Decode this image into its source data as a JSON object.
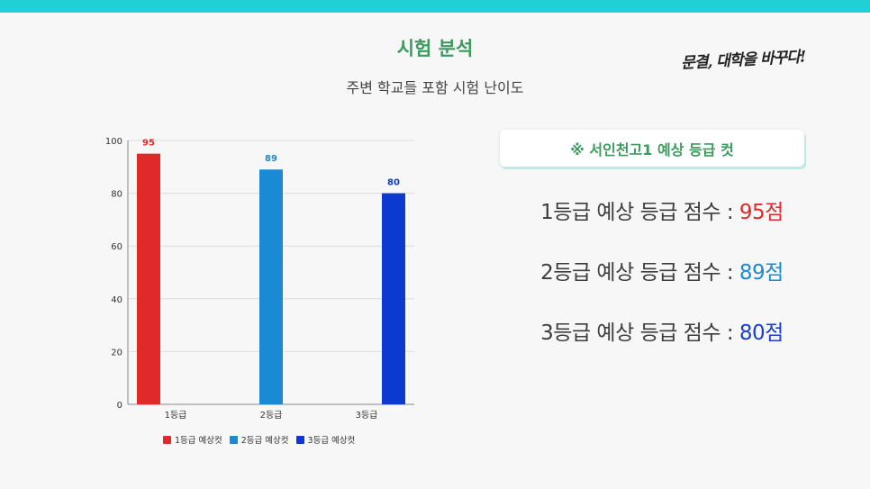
{
  "header": {
    "title": "시험 분석",
    "subtitle": "주변 학교들 포함 시험 난이도",
    "brand_logo_text": "문결, 대학을 바꾸다!"
  },
  "panel": {
    "cutoff_title": "※ 서인천고1 예상 등급 컷",
    "lines": [
      {
        "label": "1등급 예상 등급 점수 : ",
        "value": "95점",
        "color": "#e02a2a"
      },
      {
        "label": "2등급 예상 등급 점수 : ",
        "value": "89점",
        "color": "#1a8ad4"
      },
      {
        "label": "3등급 예상 등급 점수 : ",
        "value": "80점",
        "color": "#1a3fd0"
      }
    ]
  },
  "chart_data": {
    "type": "bar",
    "categories": [
      "1등급",
      "2등급",
      "3등급"
    ],
    "series": [
      {
        "name": "1등급 예상컷",
        "values": [
          95,
          null,
          null
        ],
        "color": "#e02a2a"
      },
      {
        "name": "2등급 예상컷",
        "values": [
          null,
          89,
          null
        ],
        "color": "#1a8ad4"
      },
      {
        "name": "3등급 예상컷",
        "values": [
          null,
          null,
          80
        ],
        "color": "#0c3ad0"
      }
    ],
    "yticks": [
      0,
      20,
      40,
      60,
      80,
      100
    ],
    "ylim": [
      0,
      100
    ],
    "grid": true,
    "legend_position": "bottom"
  }
}
